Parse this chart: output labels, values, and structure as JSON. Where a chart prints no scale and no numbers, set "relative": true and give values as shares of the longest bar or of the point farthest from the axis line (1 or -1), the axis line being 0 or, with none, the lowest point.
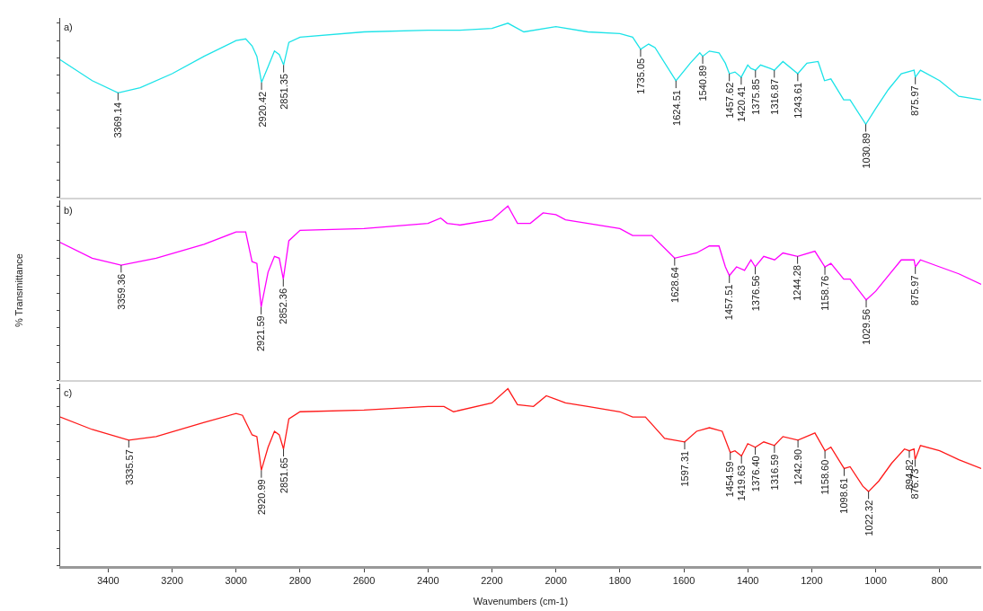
{
  "chart_data": [
    {
      "type": "line",
      "relative": true,
      "tick_labels": false,
      "xlim": [
        3550,
        670
      ],
      "xticks": [
        3400,
        3200,
        3000,
        2800,
        2600,
        2400,
        2200,
        2000,
        1800,
        1600,
        1400,
        1200,
        1000,
        800
      ],
      "x": [
        3550,
        3450,
        3369.14,
        3300,
        3200,
        3100,
        3000,
        2970,
        2950,
        2935,
        2920.42,
        2900,
        2880,
        2865,
        2851.35,
        2835,
        2800,
        2600,
        2400,
        2300,
        2200,
        2150,
        2100,
        2000,
        1900,
        1800,
        1760,
        1735.05,
        1710,
        1690,
        1624.51,
        1580,
        1550,
        1540.89,
        1520,
        1490,
        1470,
        1457.62,
        1440,
        1420.41,
        1400,
        1390,
        1375.85,
        1360,
        1330,
        1316.87,
        1290,
        1243.61,
        1215,
        1180,
        1160,
        1140,
        1100,
        1080,
        1030.89,
        1000,
        960,
        920,
        880,
        875.97,
        860,
        800,
        740,
        670
      ],
      "series": [
        {
          "color": "#1de3e8",
          "values": [
            0.79,
            0.67,
            0.6,
            0.63,
            0.71,
            0.81,
            0.9,
            0.91,
            0.87,
            0.81,
            0.66,
            0.75,
            0.84,
            0.82,
            0.76,
            0.89,
            0.92,
            0.95,
            0.96,
            0.96,
            0.97,
            1.0,
            0.95,
            0.98,
            0.95,
            0.94,
            0.92,
            0.85,
            0.88,
            0.86,
            0.67,
            0.77,
            0.83,
            0.81,
            0.84,
            0.83,
            0.77,
            0.71,
            0.72,
            0.69,
            0.76,
            0.74,
            0.73,
            0.76,
            0.74,
            0.73,
            0.78,
            0.71,
            0.77,
            0.78,
            0.67,
            0.68,
            0.56,
            0.56,
            0.42,
            0.51,
            0.62,
            0.71,
            0.73,
            0.69,
            0.73,
            0.67,
            0.58,
            0.56
          ]
        }
      ],
      "annotations": [
        "a)",
        {
          "text": "3369.14",
          "x": 3369.14,
          "y": 0.6
        },
        {
          "text": "2920.42",
          "x": 2920.42,
          "y": 0.66
        },
        {
          "text": "2851.35",
          "x": 2851.35,
          "y": 0.76
        },
        {
          "text": "1735.05",
          "x": 1735.05,
          "y": 0.85
        },
        {
          "text": "1624.51",
          "x": 1624.51,
          "y": 0.67
        },
        {
          "text": "1540.89",
          "x": 1540.89,
          "y": 0.81
        },
        {
          "text": "1457.62",
          "x": 1457.62,
          "y": 0.71
        },
        {
          "text": "1420.41",
          "x": 1420.41,
          "y": 0.69
        },
        {
          "text": "1375.85",
          "x": 1375.85,
          "y": 0.73
        },
        {
          "text": "1316.87",
          "x": 1316.87,
          "y": 0.73
        },
        {
          "text": "1243.61",
          "x": 1243.61,
          "y": 0.71
        },
        {
          "text": "1030.89",
          "x": 1030.89,
          "y": 0.42
        },
        {
          "text": "875.97",
          "x": 875.97,
          "y": 0.69
        }
      ]
    },
    {
      "type": "line",
      "relative": true,
      "tick_labels": false,
      "ylabel": "% Transmittance",
      "xlim": [
        3550,
        670
      ],
      "xticks": [
        3400,
        3200,
        3000,
        2800,
        2600,
        2400,
        2200,
        2000,
        1800,
        1600,
        1400,
        1200,
        1000,
        800
      ],
      "x": [
        3550,
        3450,
        3359.36,
        3250,
        3100,
        3000,
        2970,
        2950,
        2935,
        2921.59,
        2900,
        2880,
        2865,
        2852.36,
        2835,
        2800,
        2600,
        2400,
        2360,
        2340,
        2300,
        2200,
        2150,
        2120,
        2080,
        2040,
        2000,
        1970,
        1900,
        1800,
        1760,
        1700,
        1628.64,
        1560,
        1520,
        1490,
        1470,
        1457.51,
        1435,
        1410,
        1390,
        1376.56,
        1350,
        1316,
        1290,
        1244.28,
        1190,
        1158.76,
        1140,
        1100,
        1080,
        1029.56,
        1000,
        960,
        920,
        880,
        875.97,
        860,
        800,
        740,
        670
      ],
      "series": [
        {
          "color": "#ff00ff",
          "values": [
            0.79,
            0.7,
            0.66,
            0.7,
            0.78,
            0.85,
            0.85,
            0.68,
            0.67,
            0.42,
            0.62,
            0.71,
            0.7,
            0.58,
            0.8,
            0.86,
            0.87,
            0.9,
            0.93,
            0.9,
            0.89,
            0.92,
            1.0,
            0.9,
            0.9,
            0.96,
            0.95,
            0.92,
            0.9,
            0.87,
            0.83,
            0.83,
            0.7,
            0.73,
            0.77,
            0.77,
            0.65,
            0.6,
            0.65,
            0.63,
            0.69,
            0.65,
            0.71,
            0.69,
            0.73,
            0.71,
            0.74,
            0.65,
            0.67,
            0.58,
            0.58,
            0.46,
            0.51,
            0.6,
            0.69,
            0.69,
            0.65,
            0.69,
            0.65,
            0.61,
            0.55
          ]
        }
      ],
      "annotations": [
        "b)",
        {
          "text": "3359.36",
          "x": 3359.36,
          "y": 0.66
        },
        {
          "text": "2921.59",
          "x": 2921.59,
          "y": 0.42
        },
        {
          "text": "2852.36",
          "x": 2852.36,
          "y": 0.58
        },
        {
          "text": "1628.64",
          "x": 1628.64,
          "y": 0.7
        },
        {
          "text": "1457.51",
          "x": 1457.51,
          "y": 0.6
        },
        {
          "text": "1376.56",
          "x": 1376.56,
          "y": 0.65
        },
        {
          "text": "1244.28",
          "x": 1244.28,
          "y": 0.71
        },
        {
          "text": "1158.76",
          "x": 1158.76,
          "y": 0.65
        },
        {
          "text": "1029.56",
          "x": 1029.56,
          "y": 0.46
        },
        {
          "text": "875.97",
          "x": 875.97,
          "y": 0.65
        }
      ]
    },
    {
      "type": "line",
      "relative": true,
      "tick_labels": "x",
      "xlabel": "Wavenumbers (cm-1)",
      "xlim": [
        3550,
        670
      ],
      "xticks": [
        3400,
        3200,
        3000,
        2800,
        2600,
        2400,
        2200,
        2000,
        1800,
        1600,
        1400,
        1200,
        1000,
        800
      ],
      "x": [
        3550,
        3450,
        3335.57,
        3250,
        3100,
        3000,
        2980,
        2950,
        2935,
        2920.99,
        2900,
        2880,
        2865,
        2851.65,
        2835,
        2800,
        2600,
        2400,
        2350,
        2320,
        2200,
        2150,
        2120,
        2070,
        2030,
        2000,
        1970,
        1900,
        1800,
        1760,
        1720,
        1660,
        1597.31,
        1560,
        1520,
        1480,
        1454.59,
        1440,
        1419.63,
        1400,
        1376.4,
        1350,
        1316.59,
        1290,
        1242.9,
        1190,
        1158.6,
        1140,
        1098.61,
        1080,
        1040,
        1022.32,
        990,
        950,
        910,
        894.82,
        880,
        876.73,
        860,
        800,
        740,
        670
      ],
      "series": [
        {
          "color": "#ff1a1a",
          "values": [
            0.84,
            0.77,
            0.71,
            0.73,
            0.81,
            0.86,
            0.85,
            0.74,
            0.73,
            0.54,
            0.67,
            0.76,
            0.74,
            0.66,
            0.83,
            0.87,
            0.88,
            0.9,
            0.9,
            0.87,
            0.92,
            1.0,
            0.91,
            0.9,
            0.96,
            0.94,
            0.92,
            0.9,
            0.87,
            0.84,
            0.84,
            0.72,
            0.7,
            0.76,
            0.78,
            0.76,
            0.64,
            0.65,
            0.62,
            0.69,
            0.67,
            0.7,
            0.68,
            0.73,
            0.71,
            0.75,
            0.65,
            0.67,
            0.55,
            0.56,
            0.45,
            0.42,
            0.48,
            0.58,
            0.66,
            0.65,
            0.66,
            0.6,
            0.68,
            0.65,
            0.6,
            0.55
          ]
        }
      ],
      "annotations": [
        "c)",
        {
          "text": "3335.57",
          "x": 3335.57,
          "y": 0.71
        },
        {
          "text": "2920.99",
          "x": 2920.99,
          "y": 0.54
        },
        {
          "text": "2851.65",
          "x": 2851.65,
          "y": 0.66
        },
        {
          "text": "1597.31",
          "x": 1597.31,
          "y": 0.7
        },
        {
          "text": "1454.59",
          "x": 1454.59,
          "y": 0.64
        },
        {
          "text": "1419.63",
          "x": 1419.63,
          "y": 0.62
        },
        {
          "text": "1376.40",
          "x": 1376.4,
          "y": 0.67
        },
        {
          "text": "1316.59",
          "x": 1316.59,
          "y": 0.68
        },
        {
          "text": "1242.90",
          "x": 1242.9,
          "y": 0.71
        },
        {
          "text": "1158.60",
          "x": 1158.6,
          "y": 0.65
        },
        {
          "text": "1098.61",
          "x": 1098.61,
          "y": 0.55
        },
        {
          "text": "1022.32",
          "x": 1022.32,
          "y": 0.42
        },
        {
          "text": "894.82",
          "x": 894.82,
          "y": 0.65
        },
        {
          "text": "876.73",
          "x": 876.73,
          "y": 0.6
        }
      ]
    }
  ]
}
